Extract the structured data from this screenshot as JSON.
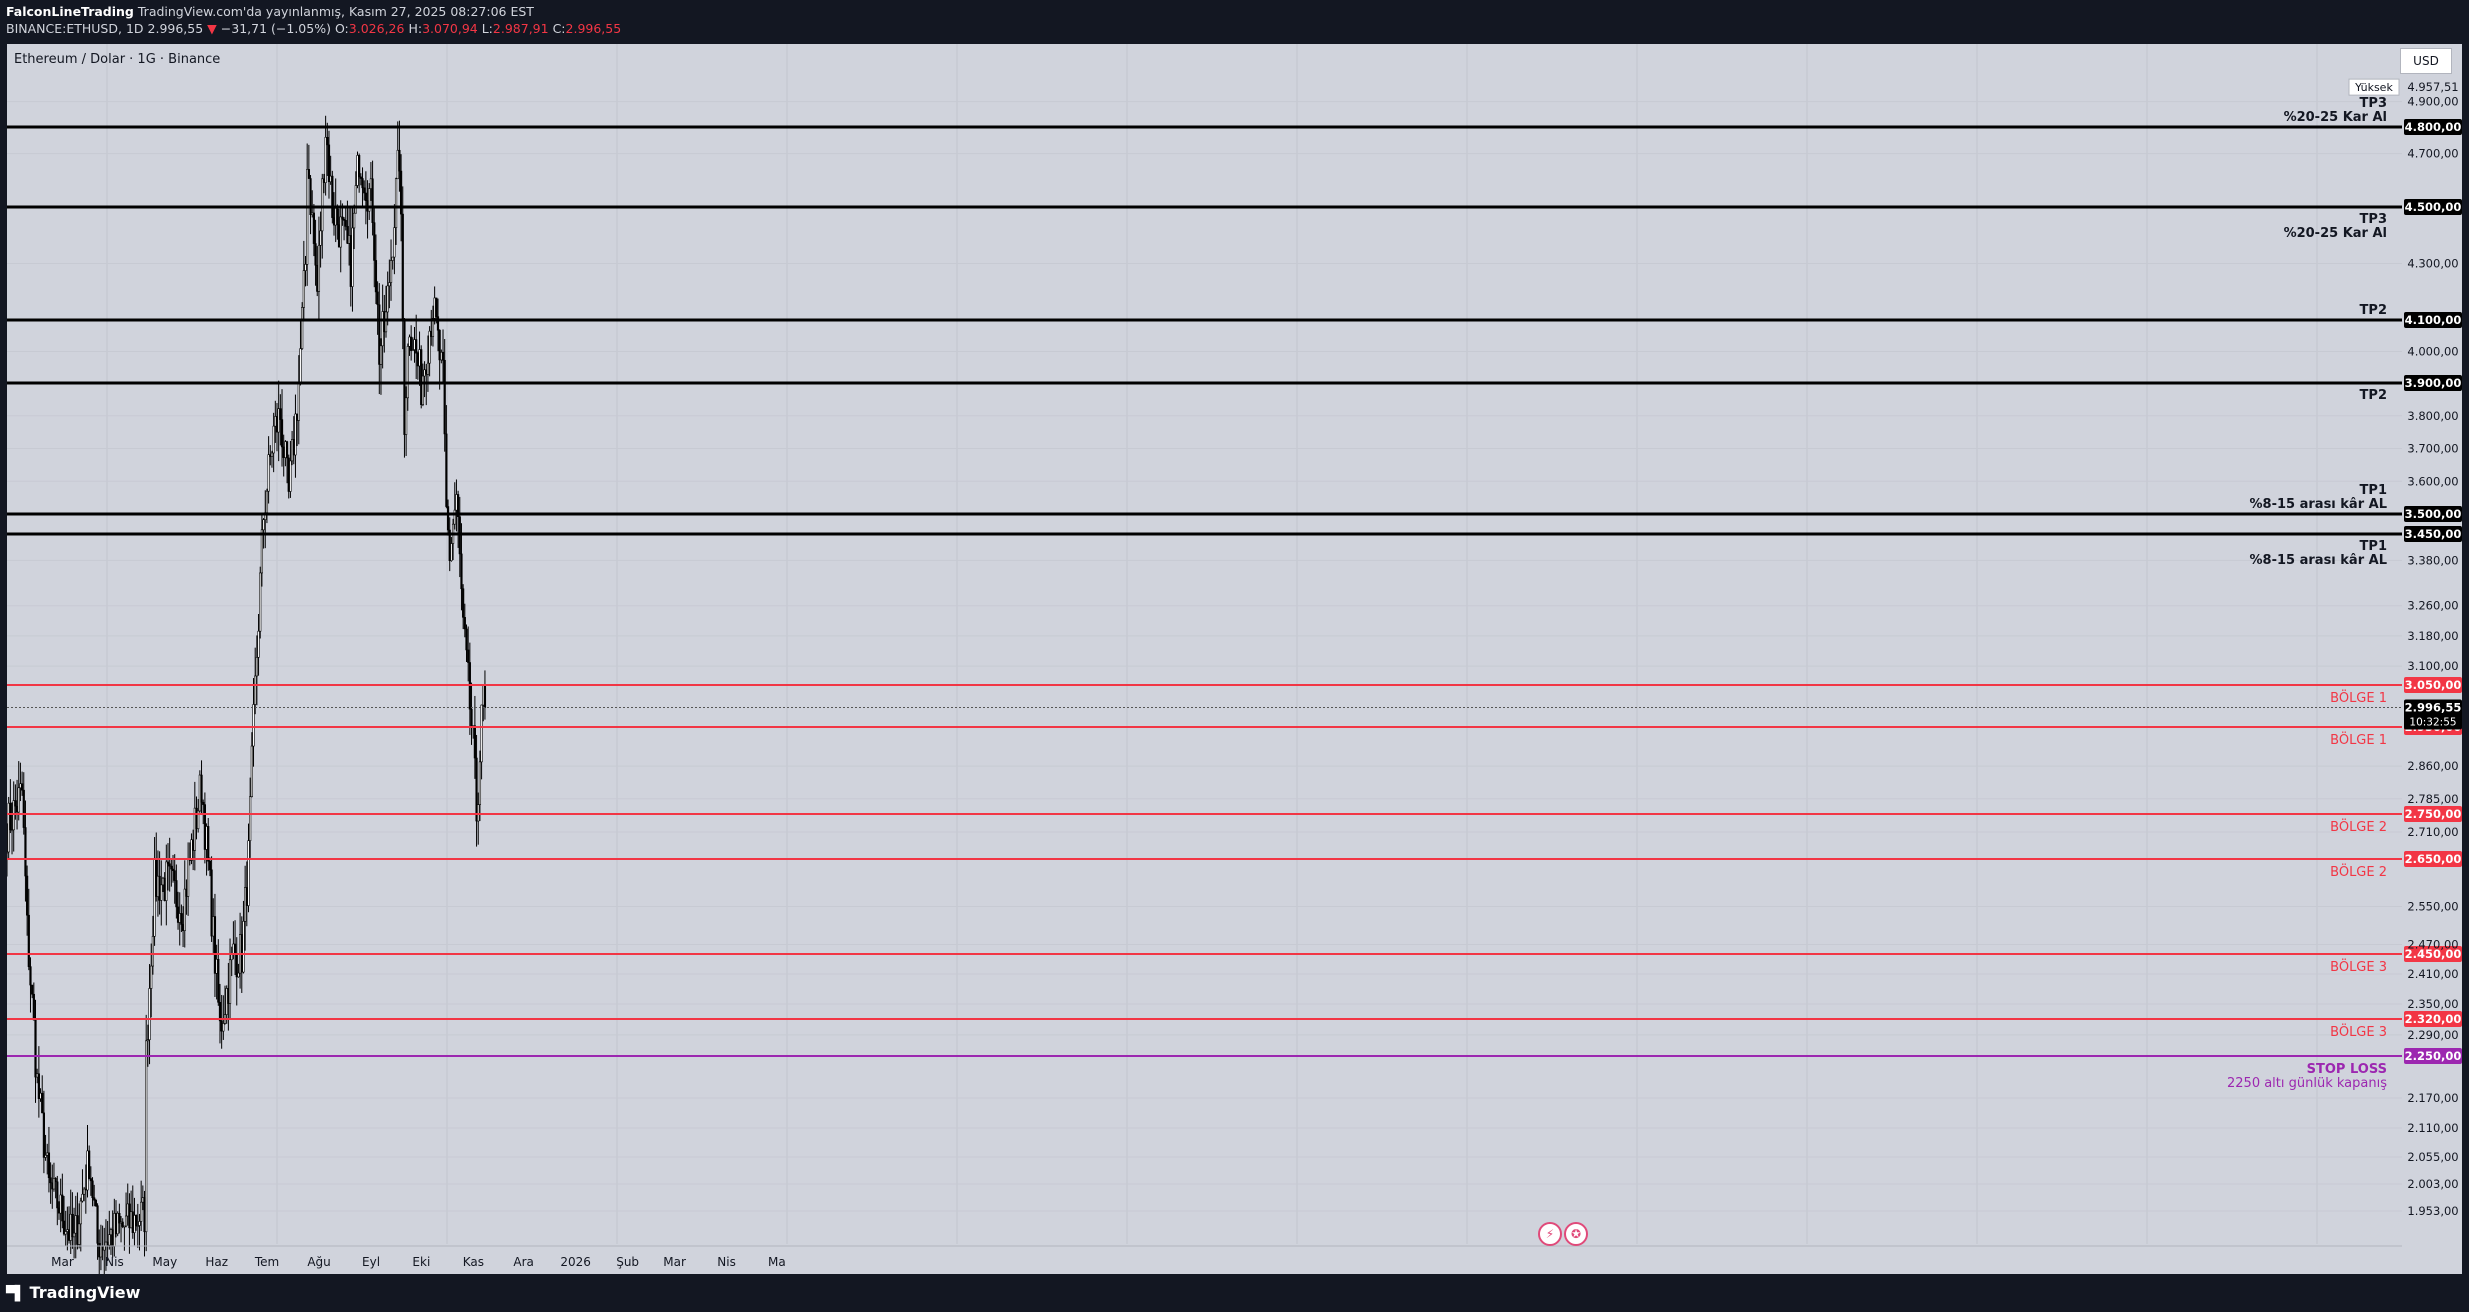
{
  "header": {
    "author": "FalconLineTrading",
    "published": "TradingView.com'da yayınlanmış, Kasım 27, 2025 08:27:06 EST",
    "symbol": "BINANCE:ETHUSD, 1D",
    "last": "2.996,55",
    "change_arrow": "▼",
    "change": "−31,71 (−1.05%)",
    "o_label": "O:",
    "o": "3.026,26",
    "h_label": "H:",
    "h": "3.070,94",
    "l_label": "L:",
    "l": "2.987,91",
    "c_label": "C:",
    "c": "2.996,55"
  },
  "chart_title": "Ethereum / Dolar · 1G · Binance",
  "currency": "USD",
  "high_marker": {
    "label": "Yüksek",
    "value": "4.957,51"
  },
  "current_price": {
    "value": "2.996,55",
    "countdown": "10:32:55"
  },
  "branding": "TradingView",
  "events": [
    "lightning-icon",
    "us-flag-icon"
  ],
  "colors": {
    "background": "#d0d3dc",
    "black_level": "#000000",
    "red_level": "#f23645",
    "stop_level": "#9c27b0",
    "candle": "#000000"
  },
  "chart_data": {
    "type": "candlestick",
    "title": "Ethereum / Dolar · 1G · Binance",
    "y_unit": "USD",
    "x_tick_labels": [
      "Mar",
      "Nis",
      "May",
      "Haz",
      "Tem",
      "Ağu",
      "Eyl",
      "Eki",
      "Kas",
      "Ara",
      "2026",
      "Şub",
      "Mar",
      "Nis",
      "Ma"
    ],
    "y_tick_labels": [
      "4.900,00",
      "4.700,00",
      "4.300,00",
      "4.000,00",
      "3.800,00",
      "3.700,00",
      "3.600,00",
      "3.380,00",
      "3.260,00",
      "3.180,00",
      "3.100,00",
      "2.860,00",
      "2.785,00",
      "2.710,00",
      "2.550,00",
      "2.470,00",
      "2.410,00",
      "2.350,00",
      "2.290,00",
      "2.170,00",
      "2.110,00",
      "2.055,00",
      "2.003,00",
      "1.953,00"
    ],
    "levels": [
      {
        "value": 4800,
        "label": "4.800,00",
        "color": "black",
        "notes": [
          "TP3",
          "%20-25 Kar Al"
        ]
      },
      {
        "value": 4500,
        "label": "4.500,00",
        "color": "black",
        "notes": [
          "TP3",
          "%20-25 Kar Al"
        ]
      },
      {
        "value": 4100,
        "label": "4.100,00",
        "color": "black",
        "notes": [
          "TP2"
        ]
      },
      {
        "value": 3900,
        "label": "3.900,00",
        "color": "black",
        "notes": [
          "TP2"
        ]
      },
      {
        "value": 3500,
        "label": "3.500,00",
        "color": "black",
        "notes": [
          "TP1",
          "%8-15 arası kâr AL"
        ]
      },
      {
        "value": 3450,
        "label": "3.450,00",
        "color": "black",
        "notes": [
          "TP1",
          "%8-15 arası kâr AL"
        ]
      },
      {
        "value": 3050,
        "label": "3.050,00",
        "color": "red",
        "notes": [
          "BÖLGE 1"
        ]
      },
      {
        "value": 2950,
        "label": "2.950,00",
        "color": "red",
        "notes": [
          "BÖLGE 1"
        ]
      },
      {
        "value": 2750,
        "label": "2.750,00",
        "color": "red",
        "notes": [
          "BÖLGE 2"
        ]
      },
      {
        "value": 2650,
        "label": "2.650,00",
        "color": "red",
        "notes": [
          "BÖLGE 2"
        ]
      },
      {
        "value": 2450,
        "label": "2.450,00",
        "color": "red",
        "notes": [
          "BÖLGE 3"
        ]
      },
      {
        "value": 2320,
        "label": "2.320,00",
        "color": "red",
        "notes": [
          "BÖLGE 3"
        ]
      },
      {
        "value": 2250,
        "label": "2.250,00",
        "color": "purple",
        "notes": [
          "STOP LOSS",
          "2250 altı günlük kapanış"
        ]
      }
    ],
    "series": [
      {
        "name": "ETHUSD",
        "close_path": [
          [
            "2025-02-15",
            2720
          ],
          [
            "2025-02-24",
            2800
          ],
          [
            "2025-02-27",
            2500
          ],
          [
            "2025-03-05",
            2200
          ],
          [
            "2025-03-12",
            2000
          ],
          [
            "2025-03-20",
            1950
          ],
          [
            "2025-03-27",
            1900
          ],
          [
            "2025-04-05",
            2050
          ],
          [
            "2025-04-10",
            1900
          ],
          [
            "2025-05-08",
            1950
          ],
          [
            "2025-05-09",
            2250
          ],
          [
            "2025-05-14",
            2600
          ],
          [
            "2025-05-22",
            2600
          ],
          [
            "2025-05-31",
            2550
          ],
          [
            "2025-06-11",
            2820
          ],
          [
            "2025-06-22",
            2300
          ],
          [
            "2025-06-30",
            2450
          ],
          [
            "2025-07-05",
            2450
          ],
          [
            "2025-07-09",
            2650
          ],
          [
            "2025-07-12",
            2950
          ],
          [
            "2025-07-18",
            3500
          ],
          [
            "2025-07-24",
            3750
          ],
          [
            "2025-07-28",
            3800
          ],
          [
            "2025-08-02",
            3550
          ],
          [
            "2025-08-08",
            3900
          ],
          [
            "2025-08-12",
            4300
          ],
          [
            "2025-08-13",
            4700
          ],
          [
            "2025-08-19",
            4200
          ],
          [
            "2025-08-24",
            4800
          ],
          [
            "2025-08-28",
            4500
          ],
          [
            "2025-09-03",
            4400
          ],
          [
            "2025-09-08",
            4300
          ],
          [
            "2025-09-13",
            4700
          ],
          [
            "2025-09-21",
            4500
          ],
          [
            "2025-09-25",
            4000
          ],
          [
            "2025-09-29",
            4100
          ],
          [
            "2025-10-03",
            4400
          ],
          [
            "2025-10-07",
            4700
          ],
          [
            "2025-10-10",
            3800
          ],
          [
            "2025-10-13",
            4100
          ],
          [
            "2025-10-20",
            3900
          ],
          [
            "2025-10-27",
            4150
          ],
          [
            "2025-11-02",
            3900
          ],
          [
            "2025-11-04",
            3500
          ],
          [
            "2025-11-06",
            3400
          ],
          [
            "2025-11-10",
            3550
          ],
          [
            "2025-11-14",
            3200
          ],
          [
            "2025-11-20",
            2900
          ],
          [
            "2025-11-22",
            2750
          ],
          [
            "2025-11-26",
            3026
          ],
          [
            "2025-11-27",
            2996.55
          ]
        ],
        "extremes": {
          "high": 4957.51,
          "low_visible": 1900
        }
      }
    ],
    "x_range": [
      "2025-02-15",
      "2026-05-05"
    ],
    "y_range": [
      1900,
      5000
    ],
    "grid": true
  }
}
